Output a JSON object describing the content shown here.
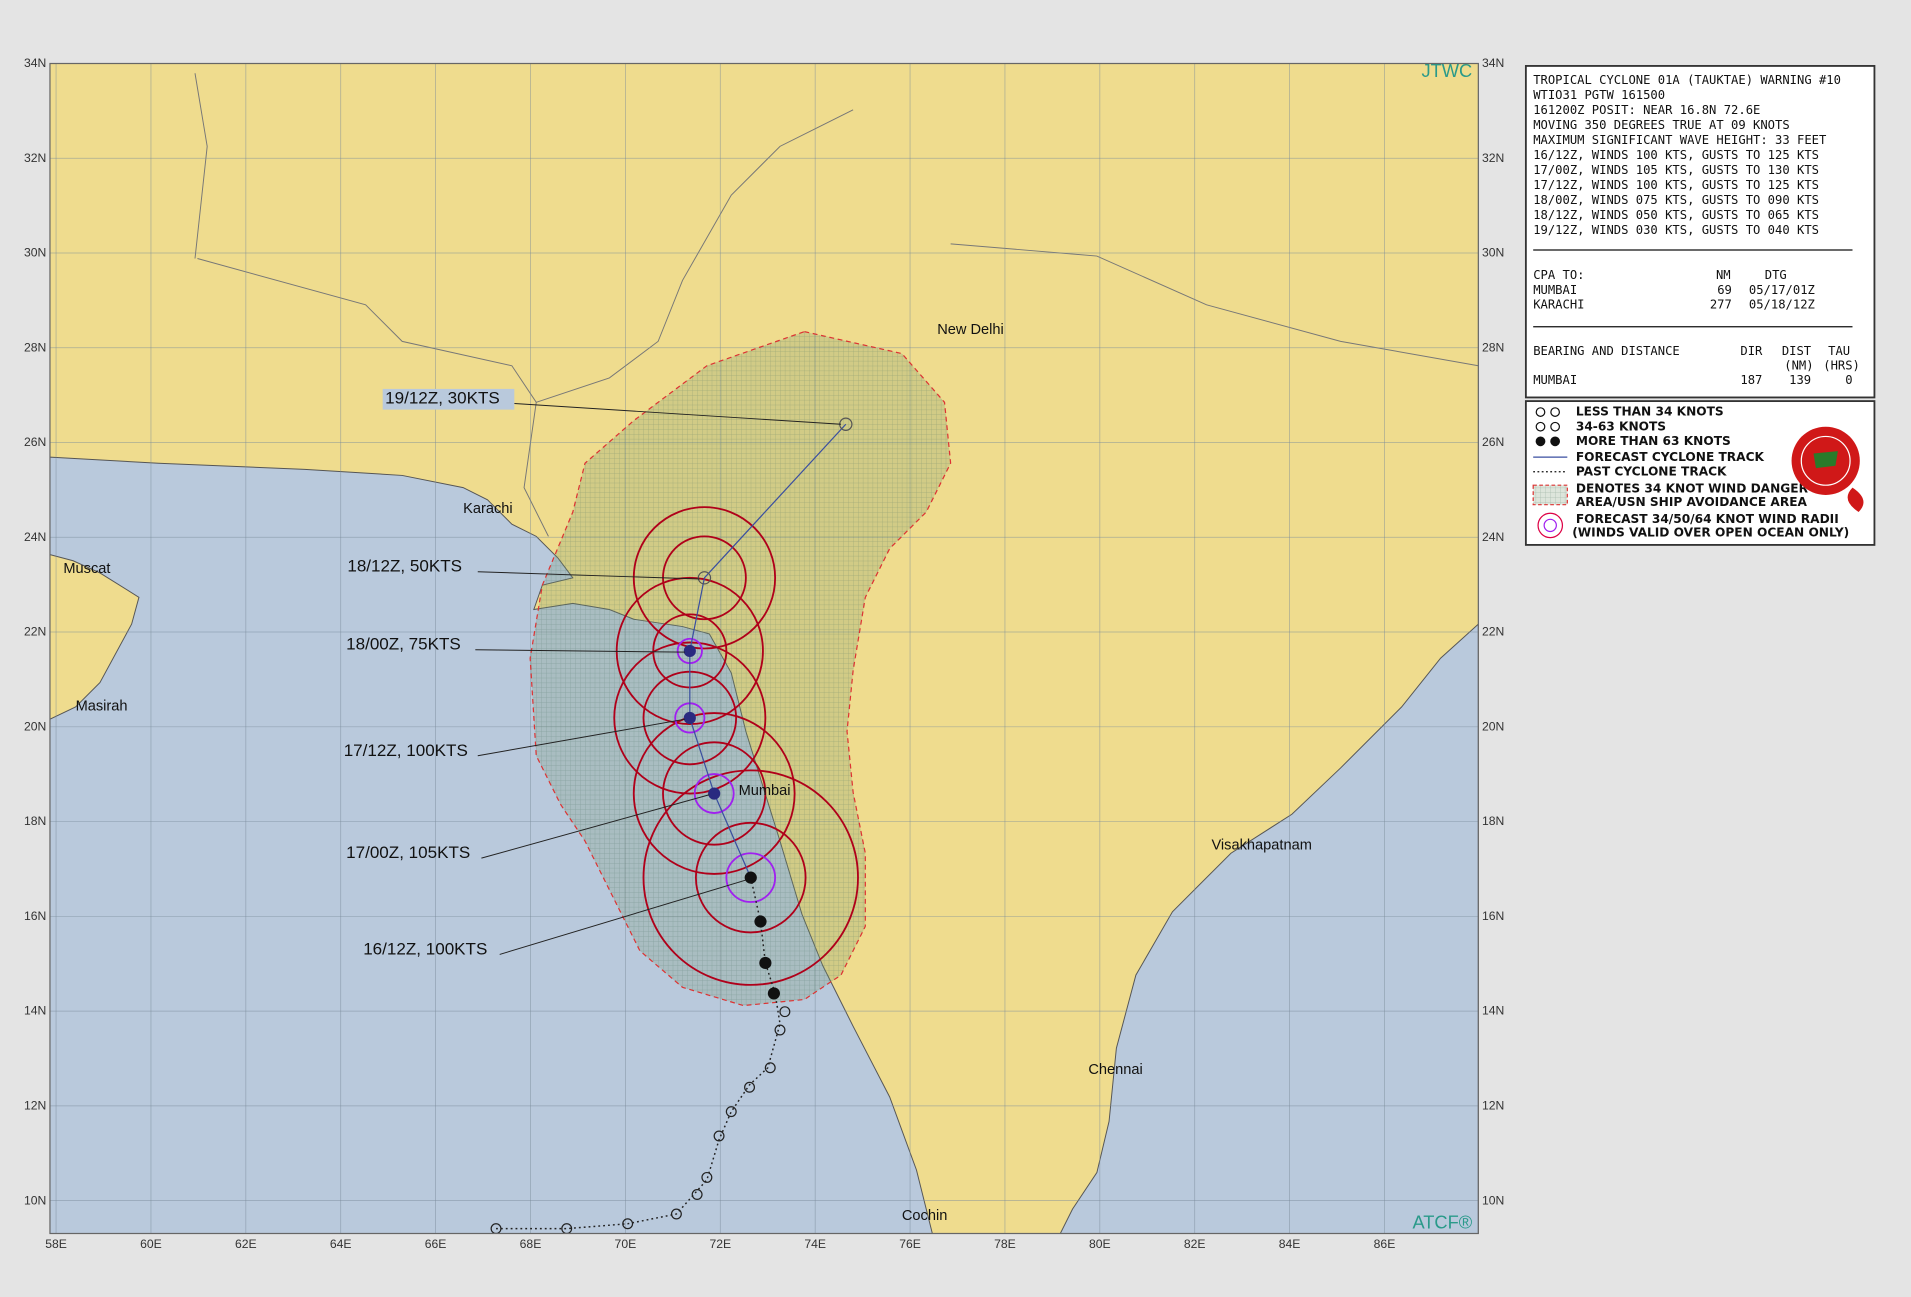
{
  "map": {
    "agency": "JTWC",
    "footer": "ATCF®",
    "lat_ticks": [
      "10N",
      "12N",
      "14N",
      "16N",
      "18N",
      "20N",
      "22N",
      "24N",
      "26N",
      "28N",
      "30N",
      "32N",
      "34N"
    ],
    "lon_ticks": [
      "58E",
      "60E",
      "62E",
      "64E",
      "66E",
      "68E",
      "70E",
      "72E",
      "74E",
      "76E",
      "78E",
      "80E",
      "82E",
      "84E",
      "86E"
    ],
    "cities": [
      "New Delhi",
      "Karachi",
      "Muscat",
      "Masirah",
      "Mumbai",
      "Visakhapatnam",
      "Chennai",
      "Cochin"
    ],
    "forecast_labels": [
      "19/12Z,  30KTS",
      "18/12Z,  50KTS",
      "18/00Z,  75KTS",
      "17/12Z, 100KTS",
      "17/00Z, 105KTS",
      "16/12Z, 100KTS"
    ]
  },
  "panel": {
    "lines": [
      "TROPICAL CYCLONE 01A (TAUKTAE) WARNING #10",
      "WTIO31 PGTW 161500",
      "161200Z POSIT: NEAR 16.8N 72.6E",
      "MOVING 350 DEGREES TRUE AT 09 KNOTS",
      "MAXIMUM SIGNIFICANT WAVE HEIGHT: 33 FEET",
      "16/12Z, WINDS 100 KTS, GUSTS TO 125 KTS",
      "17/00Z, WINDS 105 KTS, GUSTS TO 130 KTS",
      "17/12Z, WINDS 100 KTS, GUSTS TO 125 KTS",
      "18/00Z, WINDS 075 KTS, GUSTS TO 090 KTS",
      "18/12Z, WINDS 050 KTS, GUSTS TO 065 KTS",
      "19/12Z, WINDS 030 KTS, GUSTS TO 040 KTS"
    ],
    "cpa": {
      "headers": [
        "CPA TO:",
        "NM",
        "DTG"
      ],
      "rows": [
        [
          "MUMBAI",
          "69",
          "05/17/01Z"
        ],
        [
          "KARACHI",
          "277",
          "05/18/12Z"
        ]
      ]
    },
    "bearing": {
      "headers": [
        "BEARING AND DISTANCE",
        "DIR",
        "DIST",
        "TAU"
      ],
      "subheaders": [
        "(NM)",
        "(HRS)"
      ],
      "rows": [
        [
          "MUMBAI",
          "187",
          "139",
          "0"
        ]
      ]
    }
  },
  "legend": [
    "LESS THAN 34 KNOTS",
    "34-63 KNOTS",
    "MORE THAN 63 KNOTS",
    "FORECAST CYCLONE TRACK",
    "PAST CYCLONE TRACK",
    "DENOTES 34 KNOT WIND DANGER",
    "AREA/USN SHIP AVOIDANCE AREA",
    "FORECAST 34/50/64 KNOT WIND RADII",
    "(WINDS VALID OVER OPEN OCEAN ONLY)"
  ]
}
